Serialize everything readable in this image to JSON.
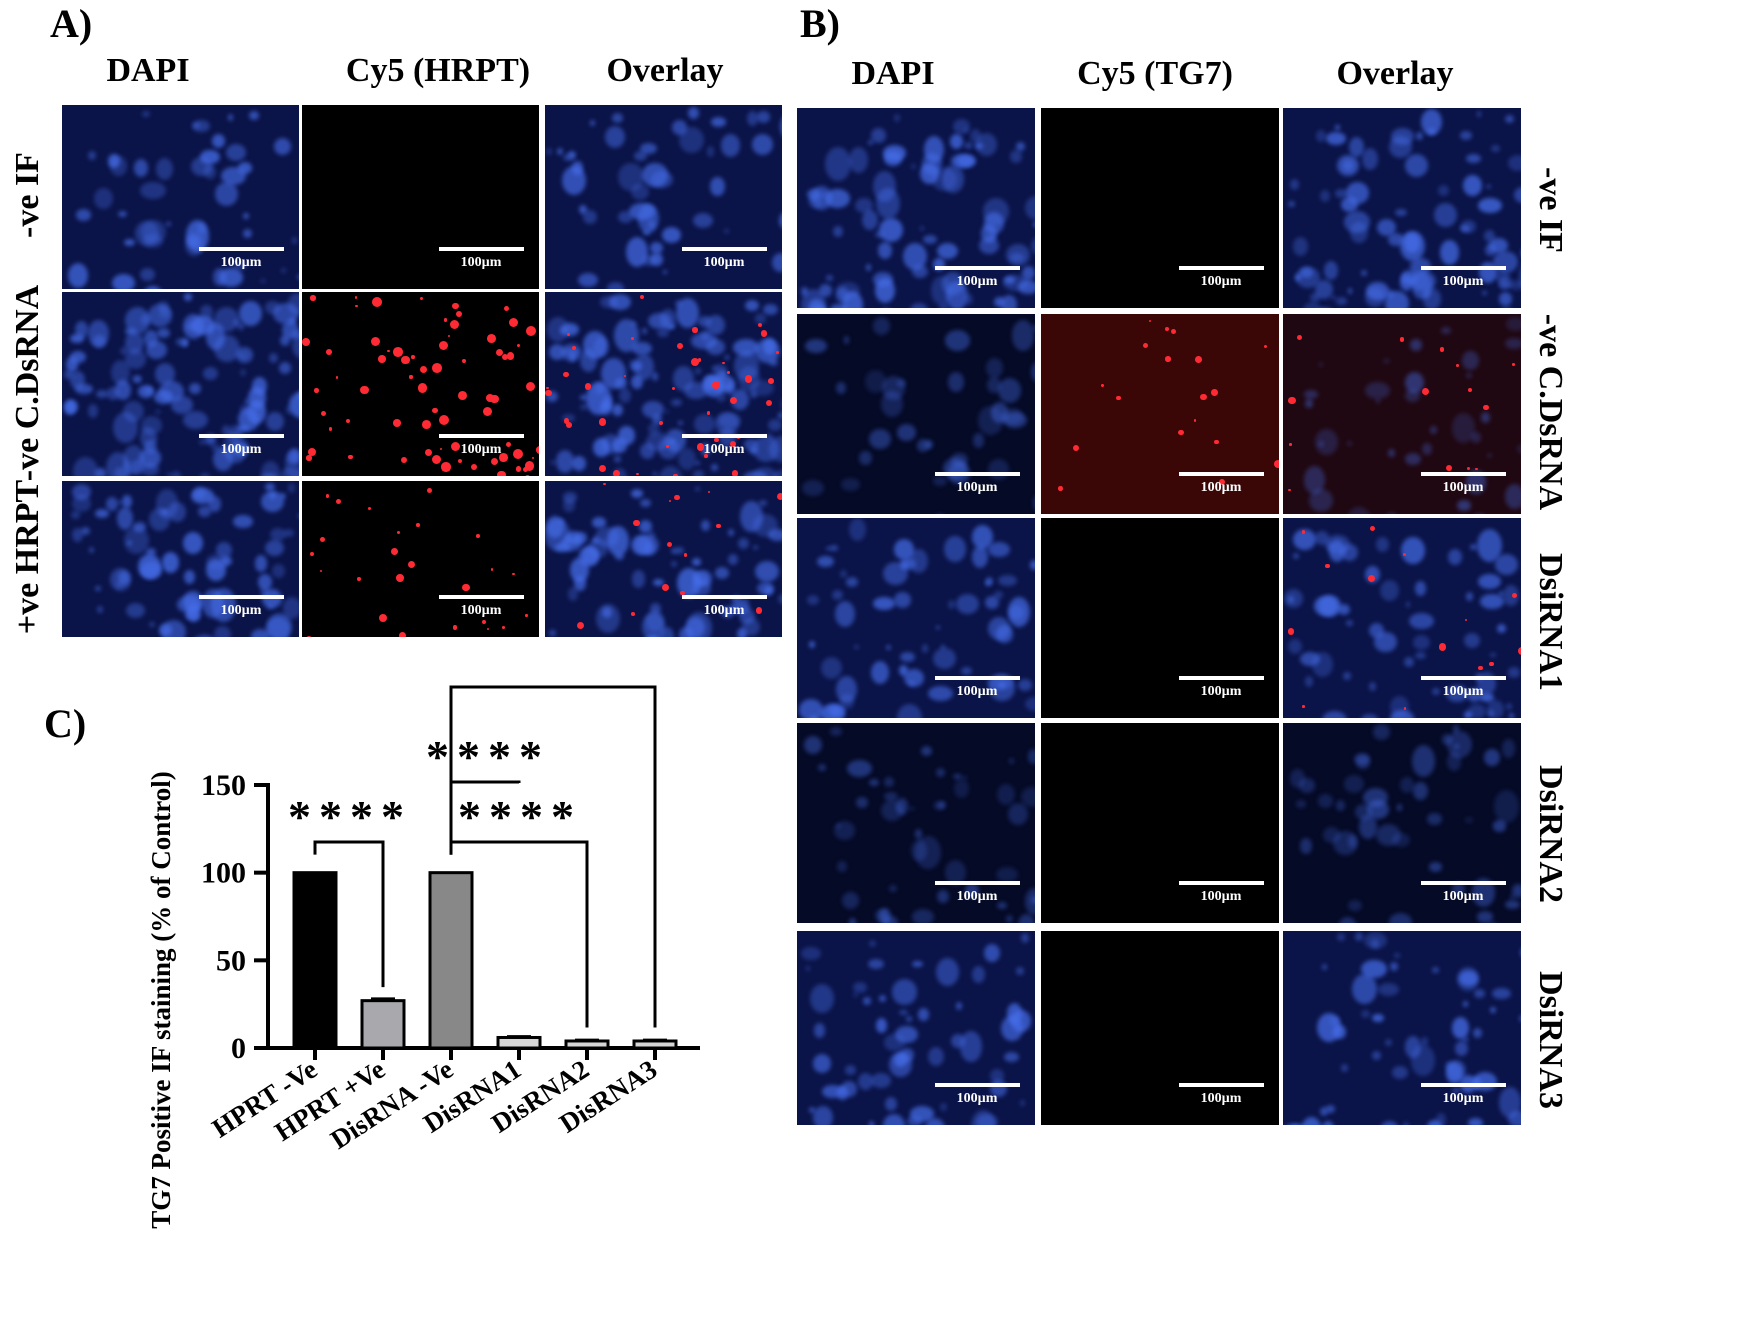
{
  "panel_labels": {
    "a": "A)",
    "b": "B)",
    "c": "C)"
  },
  "panel_a": {
    "columns": [
      "DAPI",
      "Cy5 (HRPT)",
      "Overlay"
    ],
    "rows": [
      "-ve IF",
      "-ve C.DsRNA",
      "+ve HRPT"
    ],
    "scale_label": "100µm"
  },
  "panel_b": {
    "columns": [
      "DAPI",
      "Cy5 (TG7)",
      "Overlay"
    ],
    "rows": [
      "-ve IF",
      "-ve C.DsRNA",
      "DsiRNA1",
      "DsiRNA2",
      "DsiRNA3"
    ],
    "scale_label": "100µm"
  },
  "colors": {
    "dapi": "#3a57d6",
    "cy5": "#ff1f2a",
    "bar_black": "#000000",
    "bar_light": "#a9a9ad",
    "bar_gray": "#888888",
    "bar_pale": "#d6d6d6"
  },
  "chart_data": {
    "type": "bar",
    "ylabel": "TG7 Positive IF staining (% of Control)",
    "ylim": [
      0,
      150
    ],
    "yticks": [
      "0",
      "50",
      "100",
      "150"
    ],
    "categories": [
      "HPRT -Ve",
      "HPRT +Ve",
      "DisRNA -Ve",
      "DisRNA1",
      "DisRNA2",
      "DisRNA3"
    ],
    "values": [
      100,
      27,
      100,
      6,
      4,
      4
    ],
    "errors": [
      0,
      1,
      0,
      0.5,
      0.5,
      0.5
    ],
    "significance": [
      {
        "from": 0,
        "to": 1,
        "label": "****"
      },
      {
        "from": 2,
        "to": 3,
        "label": "****"
      },
      {
        "from": 2,
        "to": 4,
        "label": "****"
      },
      {
        "from": 2,
        "to": 5,
        "label": "****"
      }
    ]
  }
}
